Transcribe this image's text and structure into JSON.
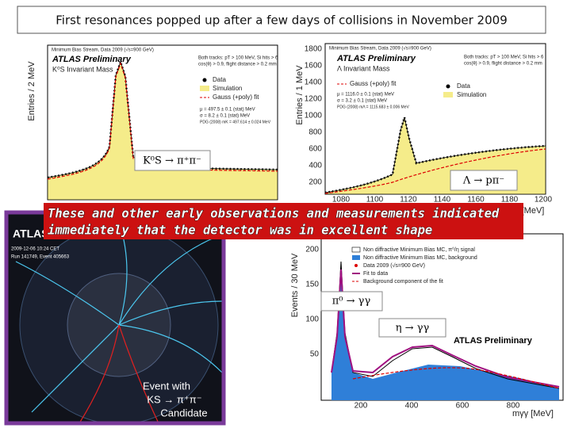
{
  "title": "First resonances popped up after a few days of collisions in November 2009",
  "banner": [
    "These and other early observations and measurements indicated",
    "immediately that the detector was in excellent shape"
  ],
  "plots": [
    {
      "y_label": "Entries / 2 MeV",
      "header": "Minimum Bias Stream, Data 2009 (√s=900 GeV)",
      "atlas": "ATLAS Preliminary",
      "subtitle": "K⁰S Invariant Mass",
      "cuts": [
        "Both tracks: pT > 100 MeV, Si hits > 6",
        "cos(θ) > 0.9, flight distance > 0.2 mm"
      ],
      "legend": [
        "Data",
        "Simulation",
        "Gauss (+poly) fit"
      ],
      "fit": [
        "μ = 497.5 ± 0.1 (stat) MeV",
        "σ = 8.2 ± 0.1 (stat) MeV",
        "PDG (2008) mK = 497.614 ± 0.024 MeV"
      ],
      "label": "K⁰S → π⁺π⁻"
    },
    {
      "y_label": "Entries / 1 MeV",
      "header": "Minimum Bias Stream, Data 2009 (√s=900 GeV)",
      "atlas": "ATLAS Preliminary",
      "subtitle": "Λ Invariant Mass",
      "cuts": [
        "Both tracks: pT > 100 MeV, Si hits > 6",
        "cos(θ) > 0.9, flight distance > 0.2 mm"
      ],
      "legend": [
        "Data",
        "Simulation",
        "Gauss (+poly) fit"
      ],
      "fit": [
        "μ = 1116.0 ± 0.1 (stat) MeV",
        "σ = 3.2 ± 0.1 (stat) MeV",
        "PDG (2008) mΛ = 1115.683 ± 0.006 MeV"
      ],
      "yticks": [
        "1800",
        "1600",
        "1400",
        "1200",
        "1000",
        "800",
        "600",
        "400",
        "200"
      ],
      "xticks": [
        "1080",
        "1100",
        "1120",
        "1140",
        "1160",
        "1180",
        "1200"
      ],
      "x_label": "[MeV]",
      "label": "Λ → pπ⁻"
    },
    {
      "y_label": "Events / 30 MeV",
      "legend": [
        "Non diffractive Minimum Bias MC, π⁰/η signal",
        "Non diffractive Minimum Bias MC, background",
        "Data 2009 (√s=900 GeV)",
        "Fit to data",
        "Background component of the fit"
      ],
      "atlas": "ATLAS Preliminary",
      "yticks": [
        "200",
        "150",
        "100",
        "50"
      ],
      "xticks": [
        "200",
        "400",
        "600",
        "800"
      ],
      "x_label": "mγγ [MeV]",
      "labels": [
        "π⁰ → γγ",
        "η → γγ"
      ]
    }
  ],
  "event_display": {
    "experiment": "ATLAS EXPERIMENT",
    "date": "2009-12-06 10:24 CET",
    "run": "Run 141749, Event 405663",
    "caption": [
      "Event with",
      "KS → π⁺π⁻",
      "Candidate"
    ]
  }
}
